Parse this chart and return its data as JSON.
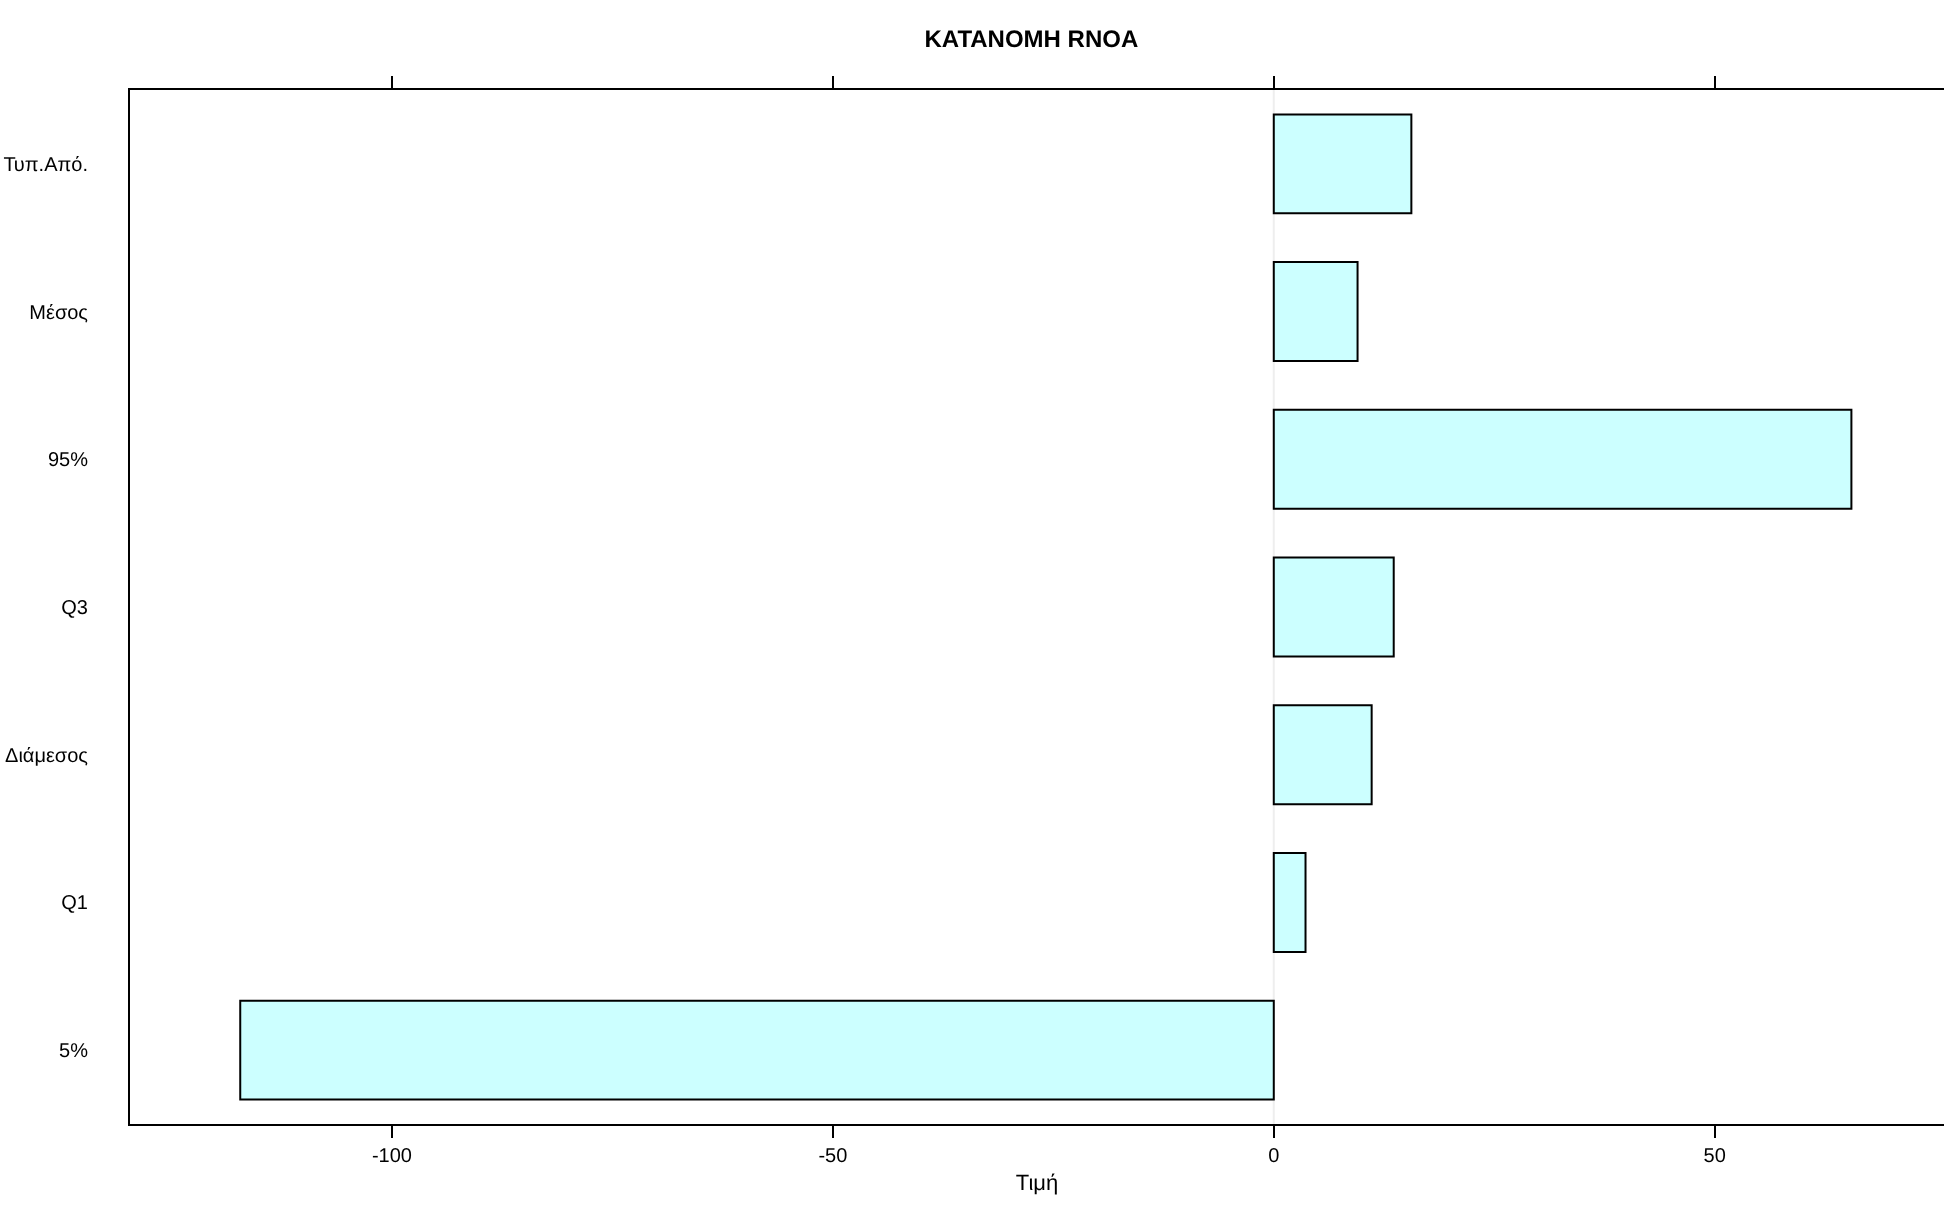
{
  "chart_data": {
    "type": "bar",
    "orientation": "horizontal",
    "title": "KATANOMH RNOA",
    "xlabel": "Τιμή",
    "categories": [
      "Τυπ.Από.",
      "Μέσος",
      "95%",
      "Q3",
      "Διάμεσος",
      "Q1",
      "5%"
    ],
    "values": [
      15.6,
      9.5,
      65.5,
      13.6,
      11.1,
      3.6,
      -117.2
    ],
    "color": "#ccffff",
    "xlim": [
      -129.7,
      76
    ],
    "xticks": [
      -100,
      -50,
      0,
      50
    ],
    "ref_lines": [
      {
        "axis": "x",
        "value": 0,
        "color": "#eeeeee"
      }
    ]
  }
}
